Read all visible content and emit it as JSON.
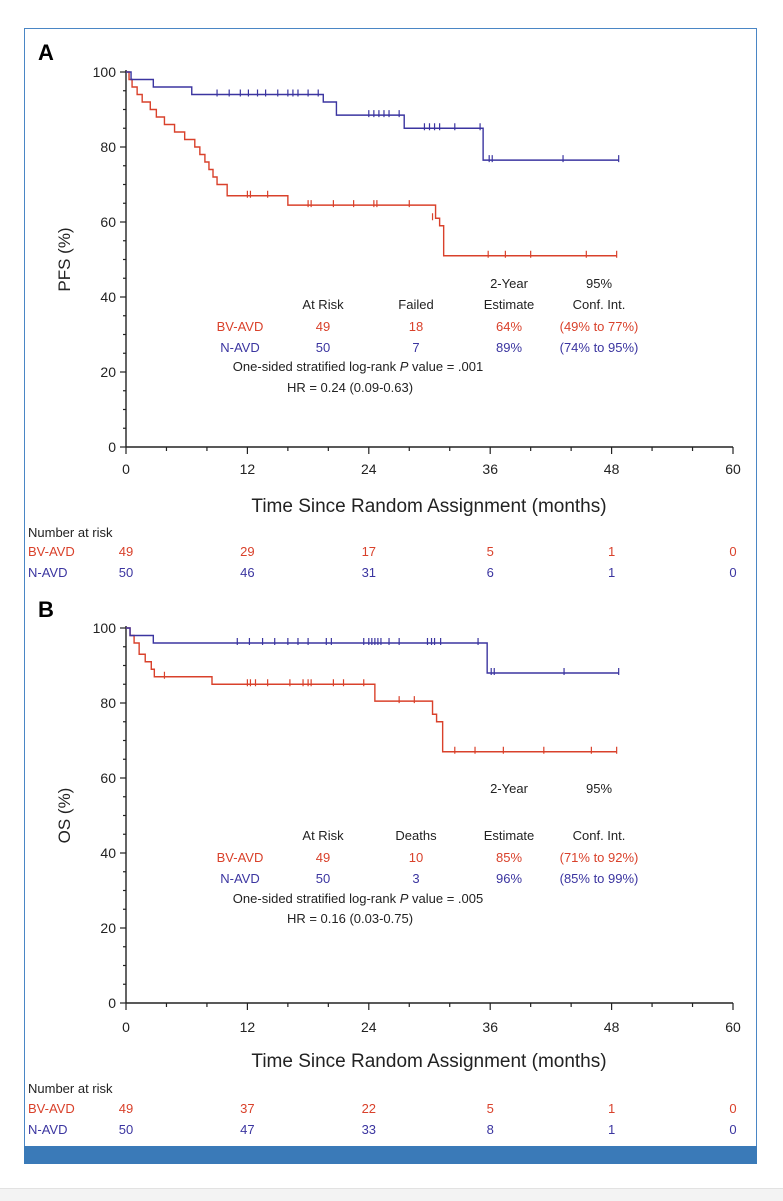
{
  "colors": {
    "bv": "#d9412b",
    "n": "#3b35a0",
    "axis": "#222222",
    "frame": "#4a86c5",
    "bar": "#3a7ab8"
  },
  "chart_data": [
    {
      "panel_label": "A",
      "type": "line",
      "ylabel": "PFS (%)",
      "xlabel": "Time Since Random Assignment (months)",
      "xlim": [
        0,
        60
      ],
      "ylim": [
        0,
        100
      ],
      "xticks": [
        0,
        12,
        24,
        36,
        48,
        60
      ],
      "yticks": [
        0,
        20,
        40,
        60,
        80,
        100
      ],
      "series": [
        {
          "name": "BV-AVD",
          "color": "#d9412b",
          "steps": [
            [
              0,
              100
            ],
            [
              0.3,
              98
            ],
            [
              0.6,
              96
            ],
            [
              1.1,
              94
            ],
            [
              1.6,
              92
            ],
            [
              2.4,
              90
            ],
            [
              3,
              88
            ],
            [
              3.8,
              86
            ],
            [
              4.8,
              84
            ],
            [
              5.8,
              82
            ],
            [
              6.8,
              80
            ],
            [
              7.3,
              78
            ],
            [
              7.8,
              76
            ],
            [
              8.2,
              74
            ],
            [
              8.6,
              72
            ],
            [
              9,
              70
            ],
            [
              10,
              67
            ],
            [
              16,
              64.5
            ],
            [
              30.6,
              61
            ],
            [
              31,
              59
            ],
            [
              31.4,
              51
            ]
          ],
          "end": 48.5,
          "censor": [
            [
              12,
              67
            ],
            [
              12.3,
              67
            ],
            [
              14,
              67
            ],
            [
              18,
              64.5
            ],
            [
              18.3,
              64.5
            ],
            [
              20.5,
              64.5
            ],
            [
              22.5,
              64.5
            ],
            [
              24.5,
              64.5
            ],
            [
              24.8,
              64.5
            ],
            [
              28,
              64.5
            ],
            [
              30.3,
              61
            ],
            [
              35.8,
              51
            ],
            [
              37.5,
              51
            ],
            [
              40,
              51
            ],
            [
              45.5,
              51
            ],
            [
              48.5,
              51
            ]
          ]
        },
        {
          "name": "N-AVD",
          "color": "#3b35a0",
          "steps": [
            [
              0,
              100
            ],
            [
              0.5,
              98
            ],
            [
              2.7,
              96
            ],
            [
              6.5,
              94
            ],
            [
              19.5,
              92
            ],
            [
              20.8,
              88.5
            ],
            [
              27.5,
              85
            ],
            [
              35.3,
              76.5
            ]
          ],
          "end": 48.7,
          "censor": [
            [
              9,
              94
            ],
            [
              10.2,
              94
            ],
            [
              11.3,
              94
            ],
            [
              12.1,
              94
            ],
            [
              13,
              94
            ],
            [
              13.8,
              94
            ],
            [
              15,
              94
            ],
            [
              16,
              94
            ],
            [
              16.5,
              94
            ],
            [
              17,
              94
            ],
            [
              18,
              94
            ],
            [
              19,
              94
            ],
            [
              24,
              88.5
            ],
            [
              24.5,
              88.5
            ],
            [
              25,
              88.5
            ],
            [
              25.5,
              88.5
            ],
            [
              26,
              88.5
            ],
            [
              27,
              88.5
            ],
            [
              29.5,
              85
            ],
            [
              30,
              85
            ],
            [
              30.5,
              85
            ],
            [
              31,
              85
            ],
            [
              32.5,
              85
            ],
            [
              35,
              85
            ],
            [
              35.9,
              76.5
            ],
            [
              36.2,
              76.5
            ],
            [
              43.2,
              76.5
            ],
            [
              48.7,
              76.5
            ]
          ]
        }
      ],
      "annotation_table": {
        "header_top": [
          "2-Year",
          "95%"
        ],
        "headers": [
          "At Risk",
          "Failed",
          "Estimate",
          "Conf. Int."
        ],
        "rows": [
          {
            "label": "BV-AVD",
            "at_risk": "49",
            "events": "18",
            "estimate": "64%",
            "ci": "(49% to 77%)"
          },
          {
            "label": "N-AVD",
            "at_risk": "50",
            "events": "7",
            "estimate": "89%",
            "ci": "(74% to 95%)"
          }
        ],
        "logrank_prefix": "One-sided stratified log-rank ",
        "logrank_p": "P",
        "logrank_suffix": " value = .001",
        "hr": "HR = 0.24 (0.09-0.63)"
      },
      "risk_table": {
        "title": "Number at risk",
        "rows": [
          {
            "label": "BV-AVD",
            "values": [
              "49",
              "29",
              "17",
              "5",
              "1",
              "0"
            ]
          },
          {
            "label": "N-AVD",
            "values": [
              "50",
              "46",
              "31",
              "6",
              "1",
              "0"
            ]
          }
        ]
      }
    },
    {
      "panel_label": "B",
      "type": "line",
      "ylabel": "OS (%)",
      "xlabel": "Time Since Random Assignment (months)",
      "xlim": [
        0,
        60
      ],
      "ylim": [
        0,
        100
      ],
      "xticks": [
        0,
        12,
        24,
        36,
        48,
        60
      ],
      "yticks": [
        0,
        20,
        40,
        60,
        80,
        100
      ],
      "series": [
        {
          "name": "BV-AVD",
          "color": "#d9412b",
          "steps": [
            [
              0,
              100
            ],
            [
              0.4,
              98
            ],
            [
              0.8,
              96
            ],
            [
              1.3,
              93
            ],
            [
              1.9,
              91
            ],
            [
              2.5,
              89
            ],
            [
              2.8,
              87
            ],
            [
              8.5,
              85
            ],
            [
              24.6,
              80.5
            ],
            [
              30.3,
              77
            ],
            [
              30.7,
              75
            ],
            [
              31.3,
              67
            ]
          ],
          "end": 48.5,
          "censor": [
            [
              3.8,
              87
            ],
            [
              12,
              85
            ],
            [
              12.3,
              85
            ],
            [
              12.8,
              85
            ],
            [
              14,
              85
            ],
            [
              16.2,
              85
            ],
            [
              17.5,
              85
            ],
            [
              18,
              85
            ],
            [
              18.3,
              85
            ],
            [
              20.5,
              85
            ],
            [
              21.5,
              85
            ],
            [
              23.5,
              85
            ],
            [
              27,
              80.5
            ],
            [
              28.5,
              80.5
            ],
            [
              32.5,
              67
            ],
            [
              34.5,
              67
            ],
            [
              37.3,
              67
            ],
            [
              41.3,
              67
            ],
            [
              46,
              67
            ],
            [
              48.5,
              67
            ]
          ]
        },
        {
          "name": "N-AVD",
          "color": "#3b35a0",
          "steps": [
            [
              0,
              100
            ],
            [
              0.4,
              98
            ],
            [
              2.7,
              96
            ],
            [
              35.7,
              88
            ]
          ],
          "end": 48.7,
          "censor": [
            [
              11,
              96
            ],
            [
              12.2,
              96
            ],
            [
              13.5,
              96
            ],
            [
              14.7,
              96
            ],
            [
              16,
              96
            ],
            [
              17,
              96
            ],
            [
              18,
              96
            ],
            [
              19.8,
              96
            ],
            [
              20.3,
              96
            ],
            [
              23.5,
              96
            ],
            [
              24,
              96
            ],
            [
              24.3,
              96
            ],
            [
              24.6,
              96
            ],
            [
              24.9,
              96
            ],
            [
              25.2,
              96
            ],
            [
              26,
              96
            ],
            [
              27,
              96
            ],
            [
              29.8,
              96
            ],
            [
              30.2,
              96
            ],
            [
              30.5,
              96
            ],
            [
              31.1,
              96
            ],
            [
              34.8,
              96
            ],
            [
              36.1,
              88
            ],
            [
              36.4,
              88
            ],
            [
              43.3,
              88
            ],
            [
              48.7,
              88
            ]
          ]
        }
      ],
      "annotation_table": {
        "header_top": [
          "2-Year",
          "95%"
        ],
        "headers": [
          "At Risk",
          "Deaths",
          "Estimate",
          "Conf. Int."
        ],
        "rows": [
          {
            "label": "BV-AVD",
            "at_risk": "49",
            "events": "10",
            "estimate": "85%",
            "ci": "(71% to 92%)"
          },
          {
            "label": "N-AVD",
            "at_risk": "50",
            "events": "3",
            "estimate": "96%",
            "ci": "(85% to 99%)"
          }
        ],
        "logrank_prefix": "One-sided stratified log-rank ",
        "logrank_p": "P",
        "logrank_suffix": " value = .005",
        "hr": "HR = 0.16 (0.03-0.75)"
      },
      "risk_table": {
        "title": "Number at risk",
        "rows": [
          {
            "label": "BV-AVD",
            "values": [
              "49",
              "37",
              "22",
              "5",
              "1",
              "0"
            ]
          },
          {
            "label": "N-AVD",
            "values": [
              "50",
              "47",
              "33",
              "8",
              "1",
              "0"
            ]
          }
        ]
      }
    }
  ]
}
